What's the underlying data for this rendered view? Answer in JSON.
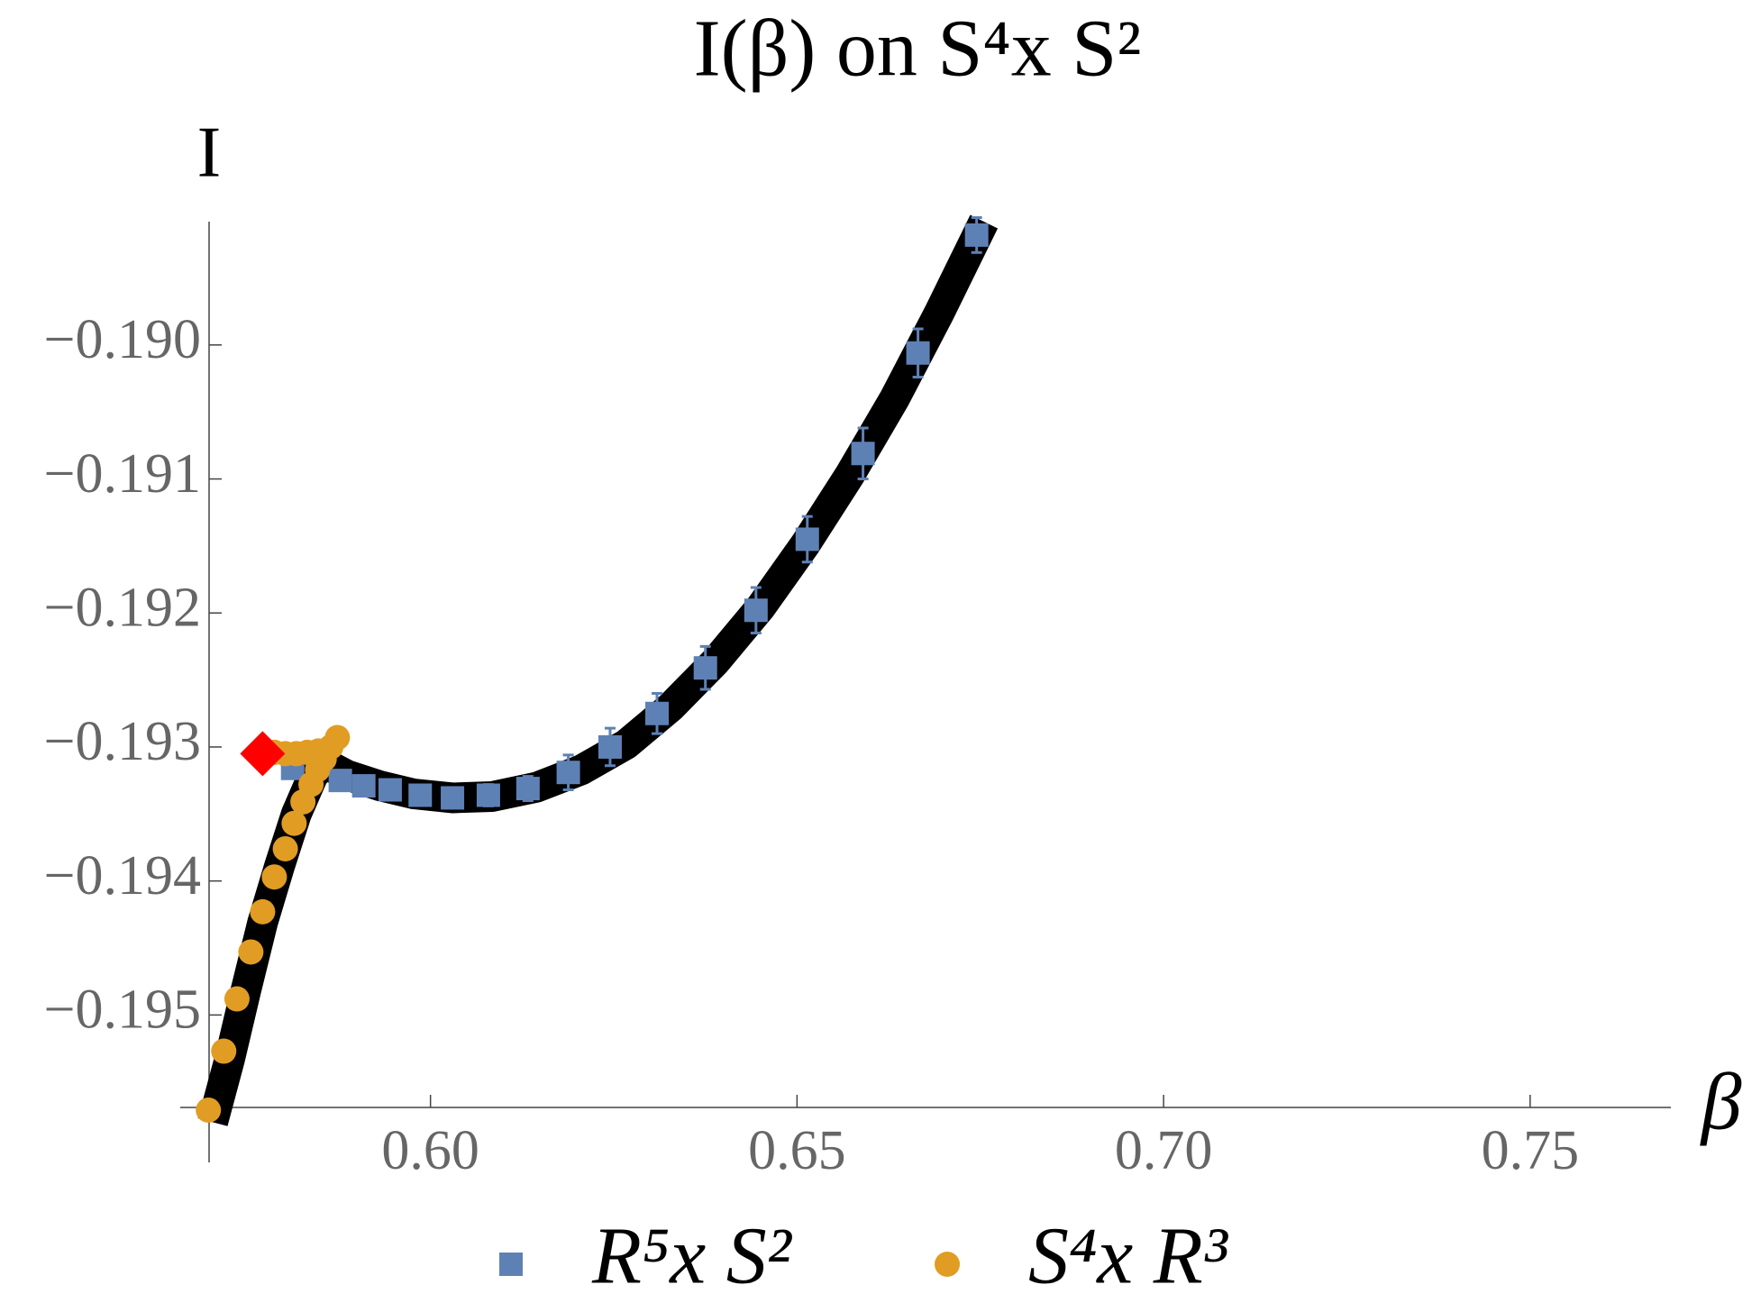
{
  "chart_data": {
    "type": "scatter",
    "title": "I(β) on S⁴x S²",
    "y_label": "I",
    "x_label": "β",
    "xlim": [
      0.5698,
      0.7692
    ],
    "ylim": [
      -0.19569,
      -0.18908
    ],
    "xticks": [
      {
        "value": 0.6,
        "label": "0.60"
      },
      {
        "value": 0.65,
        "label": "0.65"
      },
      {
        "value": 0.7,
        "label": "0.70"
      },
      {
        "value": 0.75,
        "label": "0.75"
      }
    ],
    "yticks": [
      {
        "value": -0.195,
        "label": "−0.195"
      },
      {
        "value": -0.194,
        "label": "−0.194"
      },
      {
        "value": -0.193,
        "label": "−0.193"
      },
      {
        "value": -0.192,
        "label": "−0.192"
      },
      {
        "value": -0.191,
        "label": "−0.191"
      },
      {
        "value": -0.19,
        "label": "−0.190"
      }
    ],
    "series": [
      {
        "color": "#000000",
        "marker": "line",
        "x": [
          0.5703,
          0.5726,
          0.5748,
          0.5771,
          0.5794,
          0.5817,
          0.584,
          0.5855,
          0.5886,
          0.5931,
          0.5977,
          0.603,
          0.6084,
          0.6145,
          0.6206,
          0.6267,
          0.6328,
          0.6389,
          0.645,
          0.6511,
          0.6572,
          0.6633,
          0.6694,
          0.6755
        ],
        "values": [
          -0.1958,
          -0.19533,
          -0.19482,
          -0.19431,
          -0.19389,
          -0.1935,
          -0.19321,
          -0.19312,
          -0.19321,
          -0.19329,
          -0.19335,
          -0.19338,
          -0.19337,
          -0.1933,
          -0.19317,
          -0.19298,
          -0.1927,
          -0.19236,
          -0.19196,
          -0.19149,
          -0.19097,
          -0.1904,
          -0.18976,
          -0.18908
        ]
      },
      {
        "name": "R⁵x S²",
        "color": "#5e81b5",
        "marker": "square",
        "x": [
          0.5812,
          0.5877,
          0.5909,
          0.5945,
          0.5986,
          0.603,
          0.6079,
          0.6133,
          0.6188,
          0.6245,
          0.6309,
          0.6375,
          0.6444,
          0.6514,
          0.659,
          0.6665,
          0.6745
        ],
        "values": [
          -0.19316,
          -0.19325,
          -0.19329,
          -0.19332,
          -0.19336,
          -0.19338,
          -0.19336,
          -0.19331,
          -0.19319,
          -0.193,
          -0.19275,
          -0.19241,
          -0.19198,
          -0.19145,
          -0.19081,
          -0.19006,
          -0.18918
        ],
        "errors": [
          3e-05,
          3e-05,
          3e-05,
          3e-05,
          4e-05,
          5e-05,
          8e-05,
          9e-05,
          0.00013,
          0.00014,
          0.00015,
          0.00016,
          0.00017,
          0.00017,
          0.00019,
          0.00018,
          0.00013
        ]
      },
      {
        "name": "S⁴x R³",
        "color": "#e19c24",
        "marker": "circle",
        "x": [
          0.5697,
          0.5718,
          0.5736,
          0.5755,
          0.5771,
          0.5787,
          0.5802,
          0.5814,
          0.5826,
          0.5837,
          0.5846,
          0.5855,
          0.5864,
          0.5873,
          0.5787,
          0.5802,
          0.5817,
          0.5832,
          0.5847
        ],
        "values": [
          -0.19571,
          -0.19527,
          -0.19488,
          -0.19453,
          -0.19423,
          -0.19397,
          -0.19376,
          -0.19357,
          -0.19341,
          -0.19328,
          -0.19317,
          -0.19309,
          -0.193,
          -0.19293,
          -0.19304,
          -0.19305,
          -0.19305,
          -0.19304,
          -0.19303
        ]
      },
      {
        "color": "#ff0000",
        "marker": "diamond",
        "x": [
          0.5771
        ],
        "values": [
          -0.19305
        ]
      }
    ]
  }
}
